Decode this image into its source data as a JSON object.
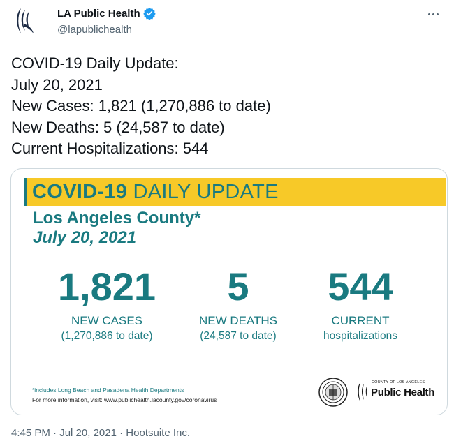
{
  "author": {
    "name": "LA Public Health",
    "handle": "@lapublichealth",
    "verified": true,
    "avatar_icon": "la-public-health-logo-icon"
  },
  "tweet": {
    "lines": [
      "COVID-19 Daily Update:",
      "July 20, 2021",
      "New Cases: 1,821 (1,270,886 to date)",
      "New Deaths: 5 (24,587 to date)",
      "Current Hospitalizations: 544"
    ]
  },
  "card": {
    "banner_bold": "COVID-19",
    "banner_rest": "DAILY UPDATE",
    "county": "Los Angeles County*",
    "date": "July 20, 2021",
    "stats": [
      {
        "value": "1,821",
        "label": "NEW CASES",
        "sub": "(1,270,886 to date)"
      },
      {
        "value": "5",
        "label": "NEW DEATHS",
        "sub": "(24,587 to date)"
      },
      {
        "value": "544",
        "label": "CURRENT",
        "sub": "hospitalizations"
      }
    ],
    "footnote": "*includes Long Beach and Pasadena Health Departments",
    "more_info": "For more information, visit: www.publichealth.lacounty.gov/coronavirus",
    "logo_small": "COUNTY OF LOS ANGELES",
    "logo_big": "Public Health",
    "colors": {
      "teal": "#1a7a80",
      "yellow": "#f7c928"
    }
  },
  "meta": {
    "time": "4:45 PM",
    "date": "Jul 20, 2021",
    "source": "Hootsuite Inc.",
    "separator": "·"
  }
}
